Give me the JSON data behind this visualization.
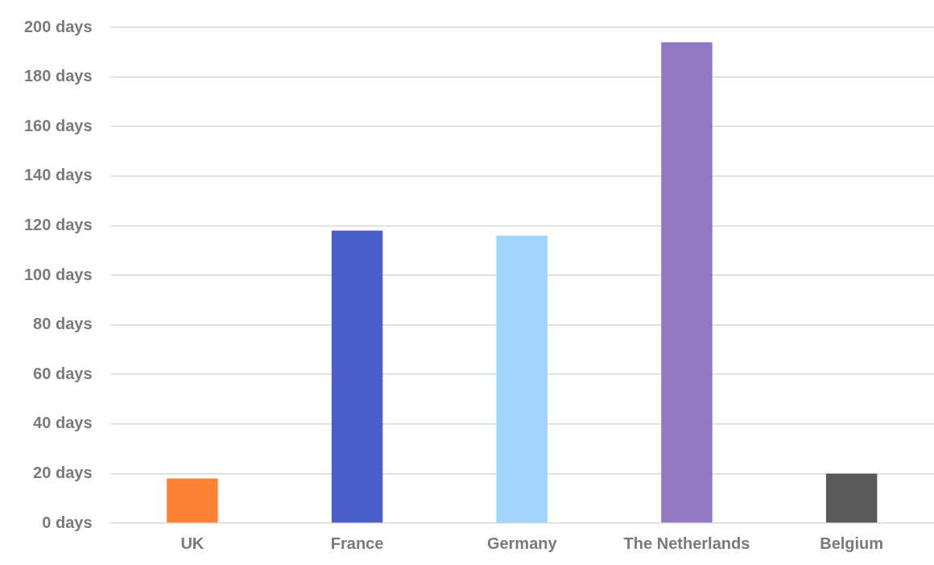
{
  "chart_data": {
    "type": "bar",
    "categories": [
      "UK",
      "France",
      "Germany",
      "The Netherlands",
      "Belgium"
    ],
    "values": [
      18,
      118,
      116,
      194,
      20
    ],
    "colors": [
      "#fe8235",
      "#4b5fcb",
      "#a0d4fb",
      "#9278c2",
      "#595959"
    ],
    "ylim": [
      0,
      200
    ],
    "yticks": [
      {
        "value": 0,
        "label": "0 days"
      },
      {
        "value": 20,
        "label": "20 days"
      },
      {
        "value": 40,
        "label": "40 days"
      },
      {
        "value": 60,
        "label": "60 days"
      },
      {
        "value": 80,
        "label": "80 days"
      },
      {
        "value": 100,
        "label": "100 days"
      },
      {
        "value": 120,
        "label": "120 days"
      },
      {
        "value": 140,
        "label": "140 days"
      },
      {
        "value": 160,
        "label": "160 days"
      },
      {
        "value": 180,
        "label": "180 days"
      },
      {
        "value": 200,
        "label": "200 days"
      }
    ],
    "grid": "y",
    "legend": false
  }
}
